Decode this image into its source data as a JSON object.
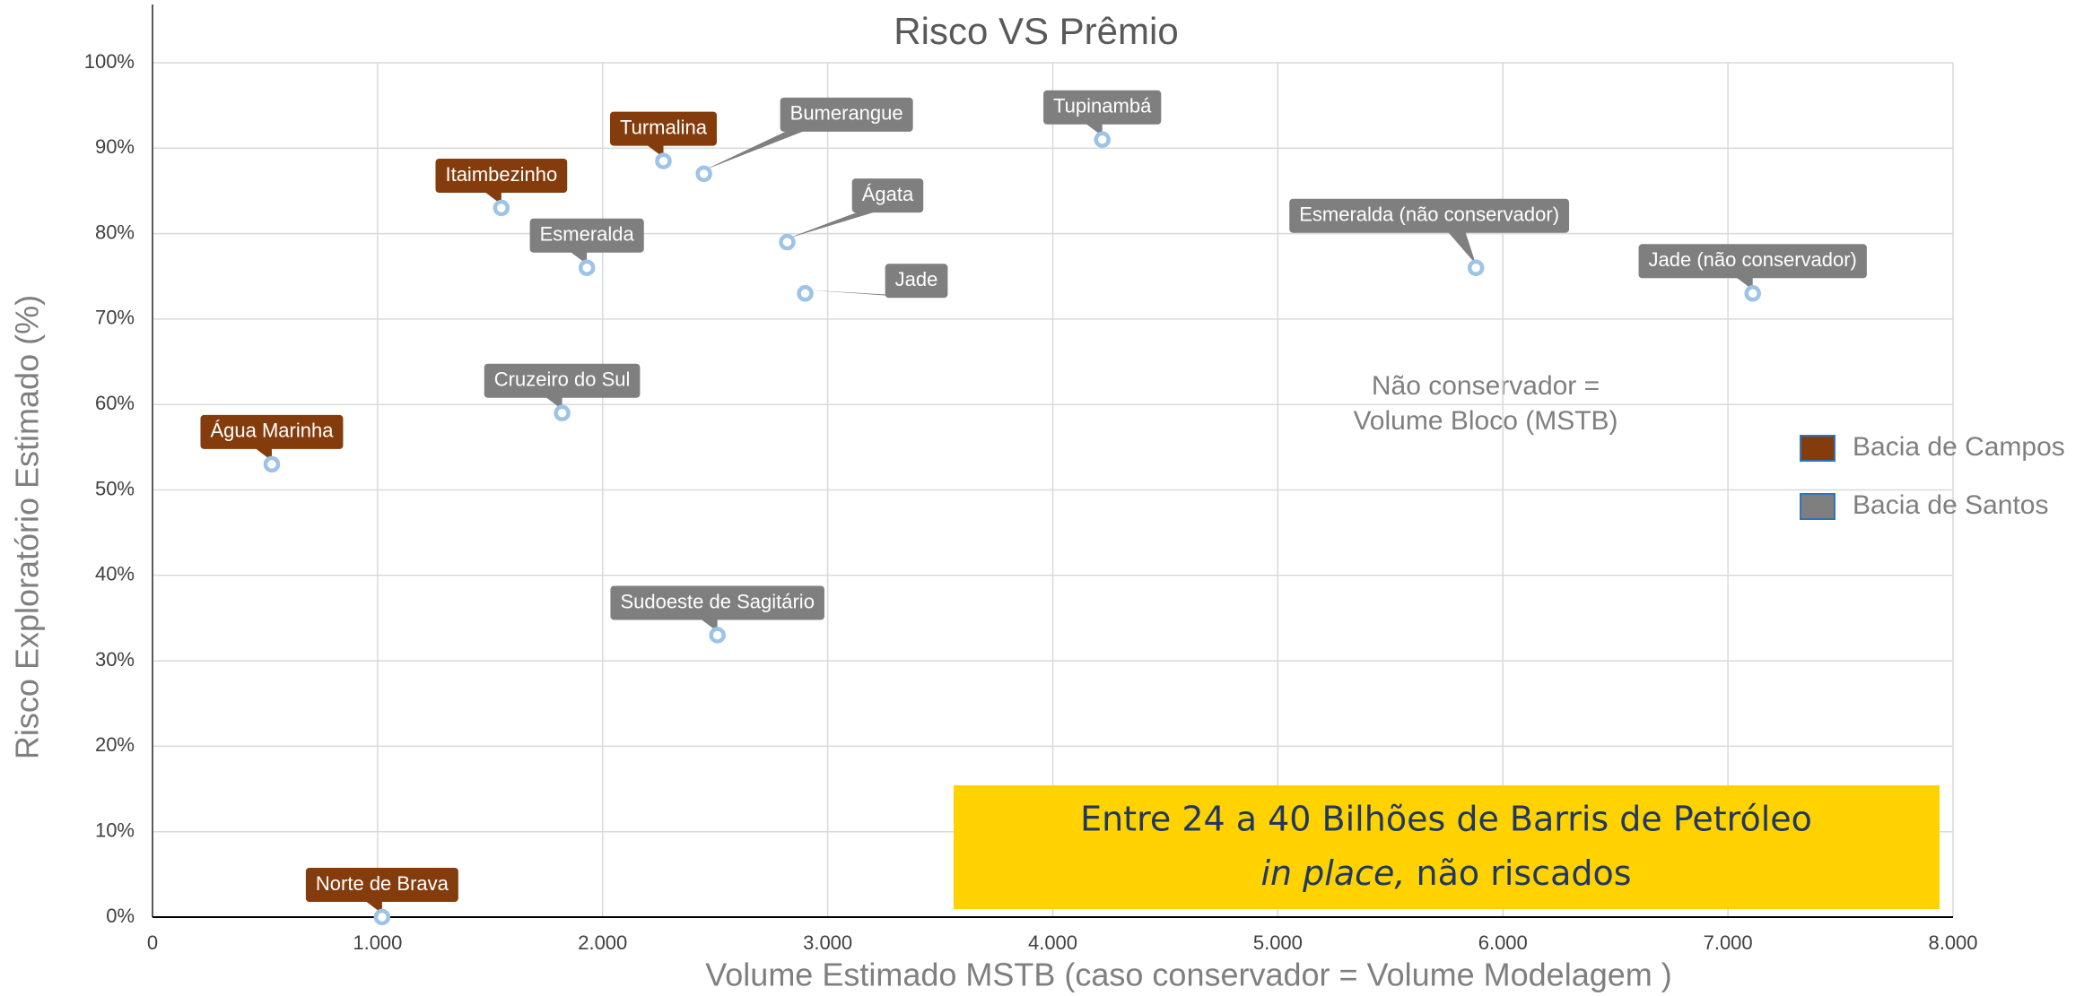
{
  "chart_data": {
    "type": "scatter",
    "title": "Risco VS Prêmio",
    "x_label": "Volume Estimado MSTB (caso conservador = Volume Modelagem )",
    "y_label": "Risco Exploratório Estimado (%)",
    "xlim": [
      0,
      8000
    ],
    "xticks": [
      0,
      {
        "value": 1000,
        "label": "1.000"
      },
      {
        "value": 2000,
        "label": "2.000"
      },
      {
        "value": 3000,
        "label": "3.000"
      },
      {
        "value": 4000,
        "label": "4.000"
      },
      {
        "value": 5000,
        "label": "5.000"
      },
      {
        "value": 6000,
        "label": "6.000"
      },
      {
        "value": 7000,
        "label": "7.000"
      },
      {
        "value": 8000,
        "label": "8.000"
      }
    ],
    "ylim": [
      0,
      100
    ],
    "yticks": [
      {
        "value": 0,
        "label": "0%"
      },
      {
        "value": 10,
        "label": "10%"
      },
      {
        "value": 20,
        "label": "20%"
      },
      {
        "value": 30,
        "label": "30%"
      },
      {
        "value": 40,
        "label": "40%"
      },
      {
        "value": 50,
        "label": "50%"
      },
      {
        "value": 60,
        "label": "60%"
      },
      {
        "value": 70,
        "label": "70%"
      },
      {
        "value": 80,
        "label": "80%"
      },
      {
        "value": 90,
        "label": "90%"
      },
      {
        "value": 100,
        "label": "100%"
      }
    ],
    "grid": true,
    "legend": "right",
    "marker_color": "#9dc3e6",
    "series": [
      {
        "name": "Bacia de Campos",
        "color": "#843c0c",
        "labels": [
          "Água Marinha",
          "Norte de Brava",
          "Itaimbezinho",
          "Turmalina"
        ],
        "x": [
          530,
          1020,
          1550,
          2270
        ],
        "values": [
          53,
          0,
          83,
          88.5
        ]
      },
      {
        "name": "Bacia de Santos",
        "color": "#7f7f7f",
        "labels": [
          "Cruzeiro do Sul",
          "Esmeralda",
          "Bumerangue",
          "Ágata",
          "Jade",
          "Sudoeste de Sagitário",
          "Tupinambá",
          "Esmeralda (não conservador)",
          "Jade (não conservador)"
        ],
        "x": [
          1820,
          1930,
          2450,
          2820,
          2900,
          2510,
          4220,
          5880,
          7110
        ],
        "values": [
          59,
          76,
          87,
          79,
          73,
          33,
          91,
          76,
          73
        ]
      }
    ],
    "annotations": {
      "note": [
        "Não conservador =",
        "Volume Bloco (MSTB)"
      ],
      "highlight": {
        "line1": "Entre 24 a 40 Bilhões de Barris de Petróleo",
        "italic": "in place,",
        "rest": "não riscados"
      }
    }
  }
}
